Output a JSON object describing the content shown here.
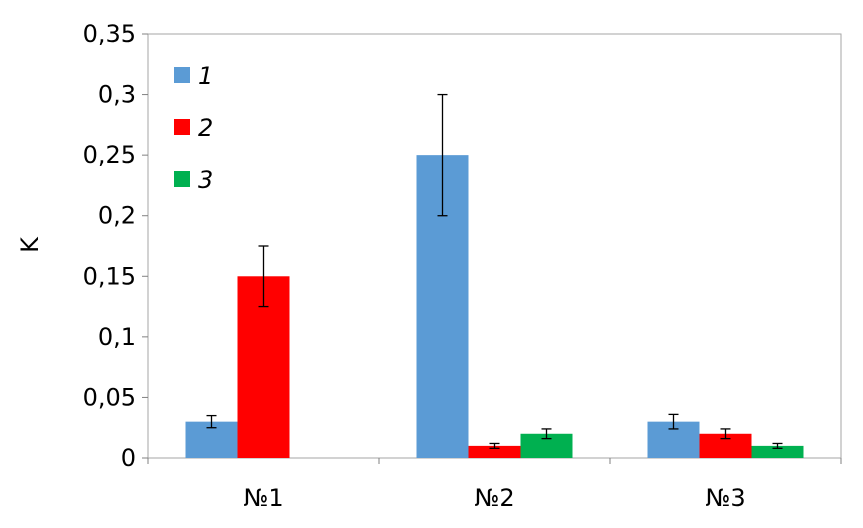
{
  "chart_data": {
    "type": "bar",
    "title": "",
    "xlabel": "",
    "ylabel": "K",
    "ylim": [
      0,
      0.35
    ],
    "yticks": [
      0,
      0.05,
      0.1,
      0.15,
      0.2,
      0.25,
      0.3,
      0.35
    ],
    "ytick_labels": [
      "0",
      "0,05",
      "0,1",
      "0,15",
      "0,2",
      "0,25",
      "0,3",
      "0,35"
    ],
    "categories": [
      "№1",
      "№2",
      "№3"
    ],
    "grid": false,
    "legend_position": "top-left",
    "series": [
      {
        "name": "1",
        "color": "#5b9bd5",
        "values": [
          0.03,
          0.25,
          0.03
        ],
        "errors": [
          0.005,
          0.05,
          0.006
        ]
      },
      {
        "name": "2",
        "color": "#ff0000",
        "values": [
          0.15,
          0.01,
          0.02
        ],
        "errors": [
          0.025,
          0.002,
          0.004
        ]
      },
      {
        "name": "3",
        "color": "#00b050",
        "values": [
          null,
          0.02,
          0.01
        ],
        "errors": [
          null,
          0.004,
          0.002
        ]
      }
    ]
  }
}
